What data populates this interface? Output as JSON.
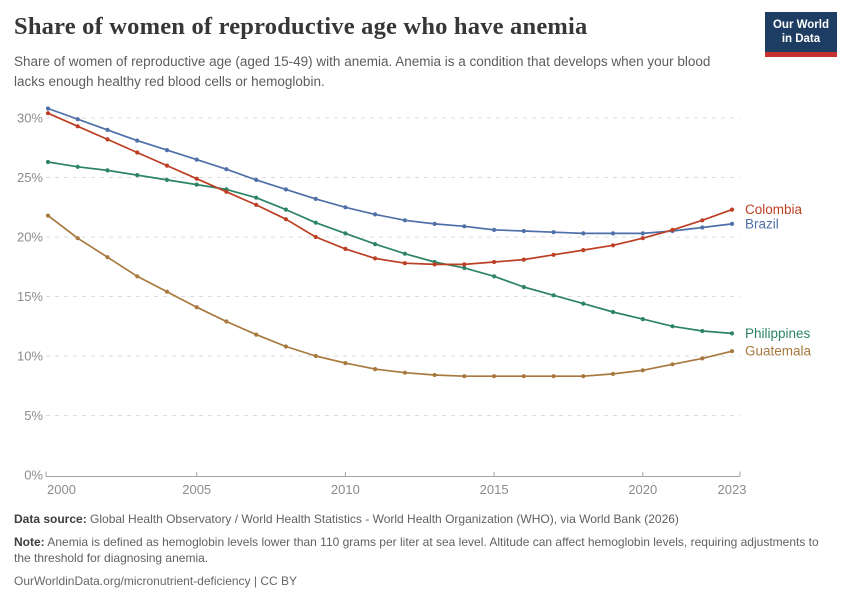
{
  "header": {
    "title": "Share of women of reproductive age who have anemia",
    "subtitle": "Share of women of reproductive age (aged 15-49) with anemia. Anemia is a condition that develops when your blood lacks enough healthy red blood cells or hemoglobin.",
    "logo": {
      "line1": "Our World",
      "line2": "in Data",
      "bg_color": "#1d3d63",
      "accent_color": "#c7302f"
    }
  },
  "chart_data": {
    "type": "line",
    "title": "Share of women of reproductive age who have anemia",
    "xlabel": "",
    "ylabel": "",
    "x": [
      2000,
      2001,
      2002,
      2003,
      2004,
      2005,
      2006,
      2007,
      2008,
      2009,
      2010,
      2011,
      2012,
      2013,
      2014,
      2015,
      2016,
      2017,
      2018,
      2019,
      2020,
      2021,
      2022,
      2023
    ],
    "series": [
      {
        "name": "Colombia",
        "color": "#BC3F24",
        "values": [
          30.4,
          29.3,
          28.2,
          27.1,
          26.0,
          24.9,
          23.8,
          22.7,
          21.5,
          20.0,
          19.0,
          18.2,
          17.8,
          17.7,
          17.7,
          17.9,
          18.1,
          18.5,
          18.9,
          19.3,
          19.9,
          20.6,
          21.4,
          22.3
        ]
      },
      {
        "name": "Brazil",
        "color": "#4F6FA8",
        "values": [
          30.8,
          29.9,
          29.0,
          28.1,
          27.3,
          26.5,
          25.7,
          24.8,
          24.0,
          23.2,
          22.5,
          21.9,
          21.4,
          21.1,
          20.9,
          20.6,
          20.5,
          20.4,
          20.3,
          20.3,
          20.3,
          20.5,
          20.8,
          21.1
        ]
      },
      {
        "name": "Philippines",
        "color": "#2C8465",
        "values": [
          26.3,
          25.9,
          25.6,
          25.2,
          24.8,
          24.4,
          24.0,
          23.3,
          22.3,
          21.2,
          20.3,
          19.4,
          18.6,
          17.9,
          17.4,
          16.7,
          15.8,
          15.1,
          14.4,
          13.7,
          13.1,
          12.5,
          12.1,
          11.9
        ]
      },
      {
        "name": "Guatemala",
        "color": "#A8793F",
        "values": [
          21.8,
          19.9,
          18.3,
          16.7,
          15.4,
          14.1,
          12.9,
          11.8,
          10.8,
          10.0,
          9.4,
          8.9,
          8.6,
          8.4,
          8.3,
          8.3,
          8.3,
          8.3,
          8.3,
          8.5,
          8.8,
          9.3,
          9.8,
          10.4
        ]
      }
    ],
    "ylim": [
      0,
      31
    ],
    "yticks": [
      0,
      5,
      10,
      15,
      20,
      25,
      30
    ],
    "ytick_suffix": "%",
    "xticks": [
      2000,
      2005,
      2010,
      2015,
      2020,
      2023
    ],
    "grid": "horizontal-dashed",
    "legend_position": "right-end-labels"
  },
  "footer": {
    "source_label": "Data source:",
    "source_text": " Global Health Observatory / World Health Statistics - World Health Organization (WHO), via World Bank (2026)",
    "note_label": "Note:",
    "note_text": " Anemia is defined as hemoglobin levels lower than 110 grams per liter at sea level. Altitude can affect hemoglobin levels, requiring adjustments to the threshold for diagnosing anemia.",
    "url_text": "OurWorldinData.org/micronutrient-deficiency | CC BY"
  }
}
